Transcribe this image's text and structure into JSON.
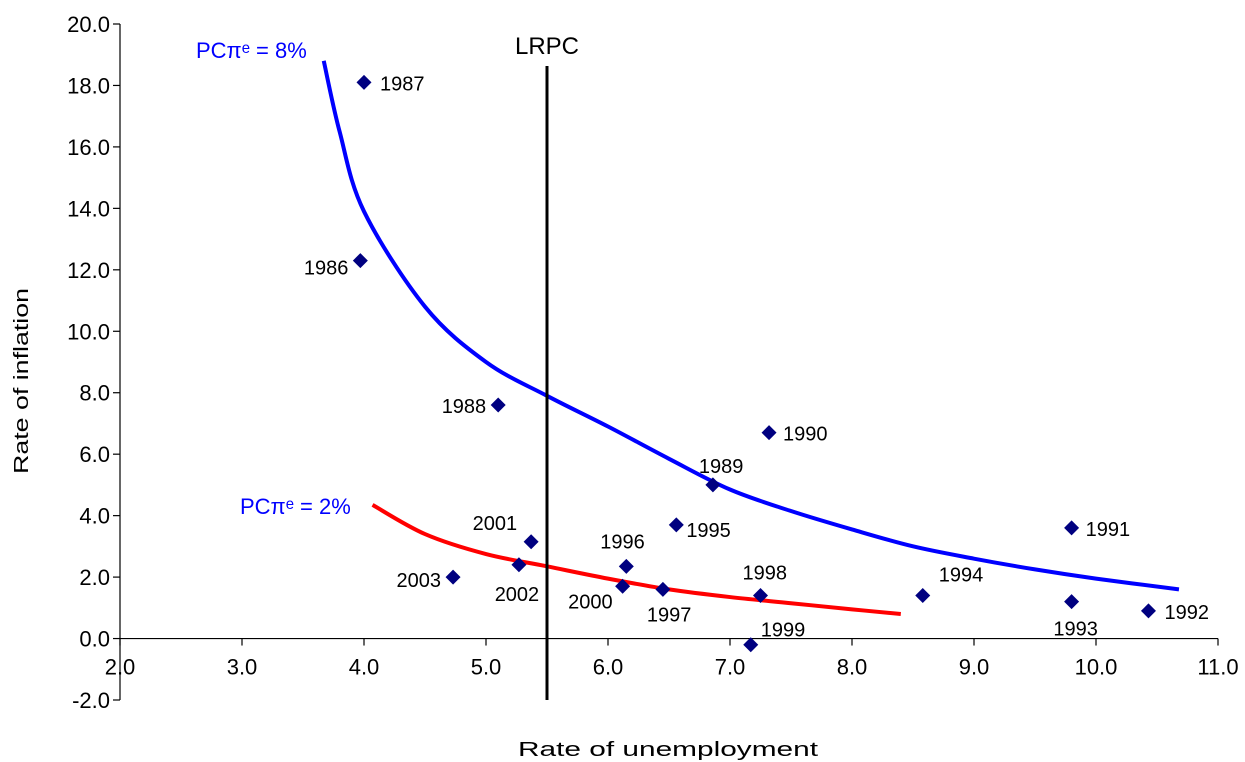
{
  "chart_data": {
    "type": "scatter",
    "title": "",
    "xlabel": "Rate of unemployment",
    "ylabel": "Rate of inflation",
    "xlim": [
      2.0,
      11.0
    ],
    "ylim": [
      -2.0,
      20.0
    ],
    "x_ticks": [
      "2.0",
      "3.0",
      "4.0",
      "5.0",
      "6.0",
      "7.0",
      "8.0",
      "9.0",
      "10.0",
      "11.0"
    ],
    "y_ticks": [
      "-2.0",
      "0.0",
      "2.0",
      "4.0",
      "6.0",
      "8.0",
      "10.0",
      "12.0",
      "14.0",
      "16.0",
      "18.0",
      "20.0"
    ],
    "grid": false,
    "marker_color": "#000080",
    "points": [
      {
        "label": "1986",
        "x": 3.97,
        "y": 12.3
      },
      {
        "label": "1987",
        "x": 4.0,
        "y": 18.1
      },
      {
        "label": "1988",
        "x": 5.1,
        "y": 7.6
      },
      {
        "label": "1989",
        "x": 6.86,
        "y": 5.0
      },
      {
        "label": "1990",
        "x": 7.32,
        "y": 6.7
      },
      {
        "label": "1991",
        "x": 9.8,
        "y": 3.6
      },
      {
        "label": "1992",
        "x": 10.43,
        "y": 0.9
      },
      {
        "label": "1993",
        "x": 9.8,
        "y": 1.2
      },
      {
        "label": "1994",
        "x": 8.58,
        "y": 1.4
      },
      {
        "label": "1995",
        "x": 6.56,
        "y": 3.7
      },
      {
        "label": "1996",
        "x": 6.15,
        "y": 2.35
      },
      {
        "label": "1997",
        "x": 6.45,
        "y": 1.6
      },
      {
        "label": "1998",
        "x": 7.25,
        "y": 1.4
      },
      {
        "label": "1999",
        "x": 7.17,
        "y": -0.2
      },
      {
        "label": "2000",
        "x": 6.12,
        "y": 1.7
      },
      {
        "label": "2001",
        "x": 5.37,
        "y": 3.15
      },
      {
        "label": "2002",
        "x": 5.27,
        "y": 2.4
      },
      {
        "label": "2003",
        "x": 4.73,
        "y": 2.0
      }
    ],
    "curves": [
      {
        "name": "PCπᵉ = 8%",
        "color": "#0000ff",
        "points": [
          [
            3.67,
            18.8
          ],
          [
            3.8,
            16.5
          ],
          [
            4.0,
            13.9
          ],
          [
            4.5,
            10.8
          ],
          [
            5.0,
            9.0
          ],
          [
            5.5,
            7.9
          ],
          [
            6.0,
            6.9
          ],
          [
            6.5,
            5.85
          ],
          [
            7.0,
            4.85
          ],
          [
            7.5,
            4.15
          ],
          [
            8.0,
            3.55
          ],
          [
            8.5,
            3.0
          ],
          [
            9.0,
            2.6
          ],
          [
            9.5,
            2.25
          ],
          [
            10.0,
            1.95
          ],
          [
            10.68,
            1.6
          ]
        ]
      },
      {
        "name": "PCπᵉ = 2%",
        "color": "#ff0000",
        "points": [
          [
            4.07,
            4.35
          ],
          [
            4.5,
            3.4
          ],
          [
            5.0,
            2.75
          ],
          [
            5.5,
            2.35
          ],
          [
            6.0,
            1.95
          ],
          [
            6.5,
            1.6
          ],
          [
            7.0,
            1.35
          ],
          [
            7.5,
            1.15
          ],
          [
            8.0,
            0.95
          ],
          [
            8.4,
            0.8
          ]
        ]
      }
    ],
    "lrpc": {
      "label": "LRPC",
      "x": 5.5
    }
  }
}
